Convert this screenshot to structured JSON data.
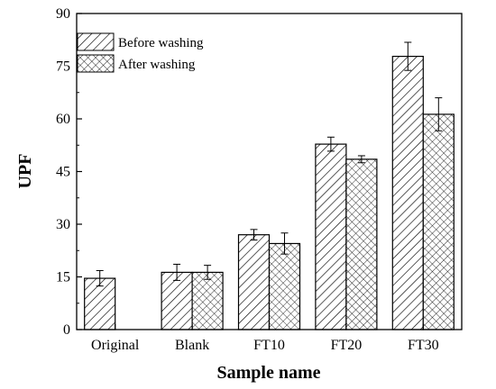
{
  "chart_data": {
    "type": "bar",
    "categories": [
      "Original",
      "Blank",
      "FT10",
      "FT20",
      "FT30"
    ],
    "series": [
      {
        "name": "Before washing",
        "pattern": "diagonal-hatch",
        "values": [
          14.6,
          16.3,
          27.0,
          52.8,
          77.8
        ],
        "errors": [
          2.2,
          2.3,
          1.5,
          2.0,
          4.0
        ]
      },
      {
        "name": "After washing",
        "pattern": "cross-hatch",
        "values": [
          null,
          16.3,
          24.5,
          48.5,
          61.3
        ],
        "errors": [
          null,
          2.0,
          3.0,
          1.0,
          4.7
        ]
      }
    ],
    "xlabel": "Sample name",
    "ylabel": "UPF",
    "ylim": [
      0,
      90
    ],
    "yticks": [
      "0",
      "15",
      "30",
      "45",
      "60",
      "75",
      "90"
    ],
    "grid": false,
    "legend": "top-left",
    "bar_color": "#000000"
  }
}
